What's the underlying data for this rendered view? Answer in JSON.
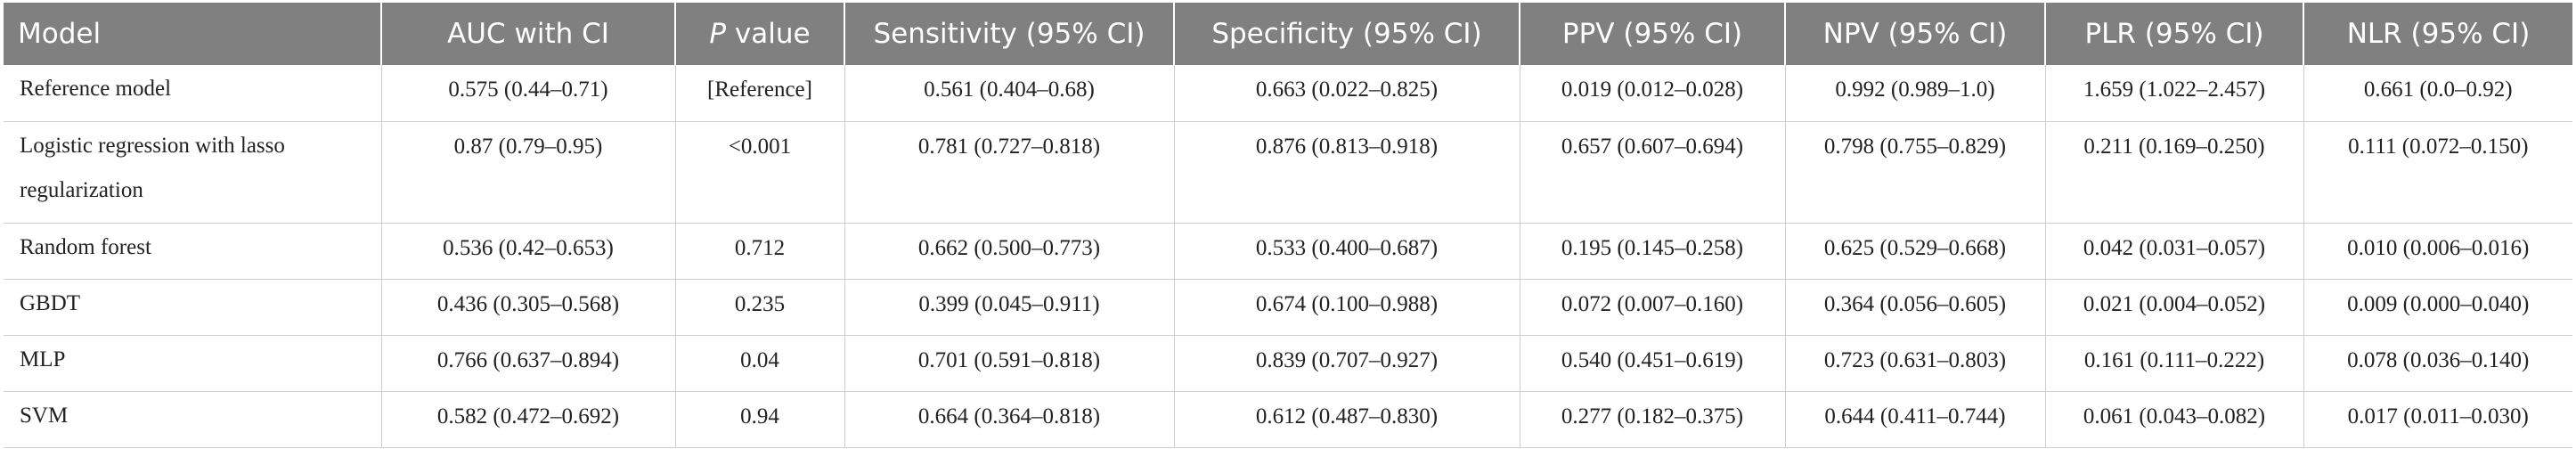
{
  "table": {
    "headers": {
      "model": "Model",
      "auc": "AUC with CI",
      "p_italic": "P",
      "p_rest": " value",
      "sensitivity": "Sensitivity (95% CI)",
      "specificity": "Specificity (95% CI)",
      "ppv": "PPV (95% CI)",
      "npv": "NPV (95% CI)",
      "plr": "PLR (95% CI)",
      "nlr": "NLR (95% CI)"
    },
    "rows": [
      [
        "Reference model",
        "0.575 (0.44–0.71)",
        "[Reference]",
        "0.561 (0.404–0.68)",
        "0.663 (0.022–0.825)",
        "0.019 (0.012–0.028)",
        "0.992 (0.989–1.0)",
        "1.659 (1.022–2.457)",
        "0.661 (0.0–0.92)"
      ],
      [
        "Logistic regression with lasso regularization",
        "0.87 (0.79–0.95)",
        "<0.001",
        "0.781 (0.727–0.818)",
        "0.876 (0.813–0.918)",
        "0.657 (0.607–0.694)",
        "0.798 (0.755–0.829)",
        "0.211 (0.169–0.250)",
        "0.111 (0.072–0.150)"
      ],
      [
        "Random forest",
        "0.536 (0.42–0.653)",
        "0.712",
        "0.662 (0.500–0.773)",
        "0.533 (0.400–0.687)",
        "0.195 (0.145–0.258)",
        "0.625 (0.529–0.668)",
        "0.042 (0.031–0.057)",
        "0.010 (0.006–0.016)"
      ],
      [
        "GBDT",
        "0.436 (0.305–0.568)",
        "0.235",
        "0.399 (0.045–0.911)",
        "0.674 (0.100–0.988)",
        "0.072 (0.007–0.160)",
        "0.364 (0.056–0.605)",
        "0.021 (0.004–0.052)",
        "0.009 (0.000–0.040)"
      ],
      [
        "MLP",
        "0.766 (0.637–0.894)",
        "0.04",
        "0.701 (0.591–0.818)",
        "0.839 (0.707–0.927)",
        "0.540 (0.451–0.619)",
        "0.723 (0.631–0.803)",
        "0.161 (0.111–0.222)",
        "0.078 (0.036–0.140)"
      ],
      [
        "SVM",
        "0.582 (0.472–0.692)",
        "0.94",
        "0.664 (0.364–0.818)",
        "0.612 (0.487–0.830)",
        "0.277 (0.182–0.375)",
        "0.644 (0.411–0.744)",
        "0.061 (0.043–0.082)",
        "0.017 (0.011–0.030)"
      ]
    ]
  }
}
